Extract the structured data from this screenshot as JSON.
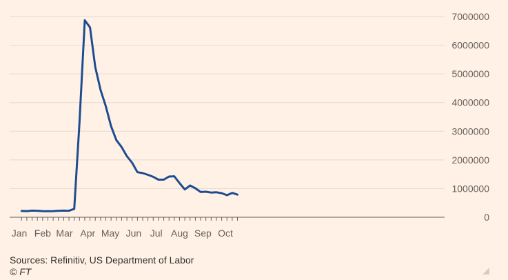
{
  "chart_data": {
    "type": "line",
    "title": "",
    "xlabel": "",
    "ylabel": "",
    "x_tick_labels": [
      "Jan",
      "Feb",
      "Mar",
      "Apr",
      "May",
      "Jun",
      "Jul",
      "Aug",
      "Sep",
      "Oct"
    ],
    "y_tick_labels": [
      "0",
      "1000000",
      "2000000",
      "3000000",
      "4000000",
      "5000000",
      "6000000",
      "7000000"
    ],
    "ylim": [
      0,
      7000000
    ],
    "y_axis_position": "right",
    "grid": true,
    "legend": "none",
    "week_ending": [
      "2020-01-04",
      "2020-01-11",
      "2020-01-18",
      "2020-01-25",
      "2020-02-01",
      "2020-02-08",
      "2020-02-15",
      "2020-02-22",
      "2020-02-29",
      "2020-03-07",
      "2020-03-14",
      "2020-03-21",
      "2020-03-28",
      "2020-04-04",
      "2020-04-11",
      "2020-04-18",
      "2020-04-25",
      "2020-05-02",
      "2020-05-09",
      "2020-05-16",
      "2020-05-23",
      "2020-05-30",
      "2020-06-06",
      "2020-06-13",
      "2020-06-20",
      "2020-06-27",
      "2020-07-04",
      "2020-07-11",
      "2020-07-18",
      "2020-07-25",
      "2020-08-01",
      "2020-08-08",
      "2020-08-15",
      "2020-08-22",
      "2020-08-29",
      "2020-09-05",
      "2020-09-12",
      "2020-09-19",
      "2020-09-26",
      "2020-10-03",
      "2020-10-10",
      "2020-10-17"
    ],
    "series": [
      {
        "values": [
          220000,
          215000,
          230000,
          225000,
          215000,
          210000,
          215000,
          225000,
          230000,
          225000,
          290000,
          3300000,
          6870000,
          6620000,
          5240000,
          4440000,
          3870000,
          3170000,
          2690000,
          2450000,
          2130000,
          1900000,
          1570000,
          1540000,
          1480000,
          1410000,
          1310000,
          1310000,
          1420000,
          1430000,
          1190000,
          970000,
          1110000,
          1010000,
          880000,
          890000,
          860000,
          870000,
          840000,
          770000,
          850000,
          790000
        ],
        "color": "#1d4c91"
      }
    ]
  },
  "colors": {
    "background": "#fff1e5",
    "line": "#1d4c91",
    "grid": "#e6d9ce",
    "axis": "#66605c",
    "text": "#33302e"
  },
  "footer": {
    "source": "Sources: Refinitiv, US Department of Labor",
    "copyright": "© FT"
  }
}
